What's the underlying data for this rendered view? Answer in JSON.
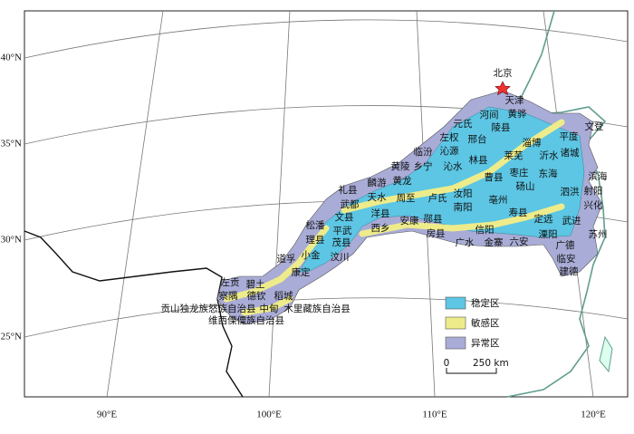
{
  "map": {
    "latitude_labels": [
      "40°N",
      "35°N",
      "30°N",
      "25°N"
    ],
    "longitude_labels": [
      "90°E",
      "100°E",
      "110°E",
      "120°E"
    ],
    "capital": "北京",
    "places": [
      "天津",
      "黄骅",
      "河间",
      "陵县",
      "元氏",
      "左权",
      "邢台",
      "沁源",
      "临汾",
      "乡宁",
      "沁水",
      "林县",
      "莱芜",
      "淄博",
      "沂水",
      "文登",
      "平度",
      "诸城",
      "东海",
      "枣庄",
      "曹县",
      "砀山",
      "亳州",
      "寿县",
      "定远",
      "泗洪",
      "滨海",
      "射阳",
      "兴化",
      "武进",
      "溧阳",
      "苏州",
      "广德",
      "临安",
      "建德",
      "黄陵",
      "黄龙",
      "麟游",
      "礼县",
      "武都",
      "文县",
      "平武",
      "天水",
      "洋县",
      "西乡",
      "周至",
      "安康",
      "卢氏",
      "汝阳",
      "南阳",
      "郧县",
      "房县",
      "信阳",
      "广水",
      "金寨",
      "六安",
      "松潘",
      "理县",
      "茂县",
      "汶川",
      "小金",
      "道孚",
      "康定",
      "左贡",
      "碧土",
      "察隅",
      "德钦",
      "稻城",
      "贡山独龙族怒族自治县",
      "中甸",
      "木里藏族自治县",
      "维西傈僳族自治县"
    ],
    "legend": [
      {
        "label": "稳定区",
        "color": "#5cc6e4"
      },
      {
        "label": "敏感区",
        "color": "#eeec8a"
      },
      {
        "label": "异常区",
        "color": "#a9acd6"
      }
    ],
    "scale": {
      "start": "0",
      "label": "250 km"
    }
  }
}
